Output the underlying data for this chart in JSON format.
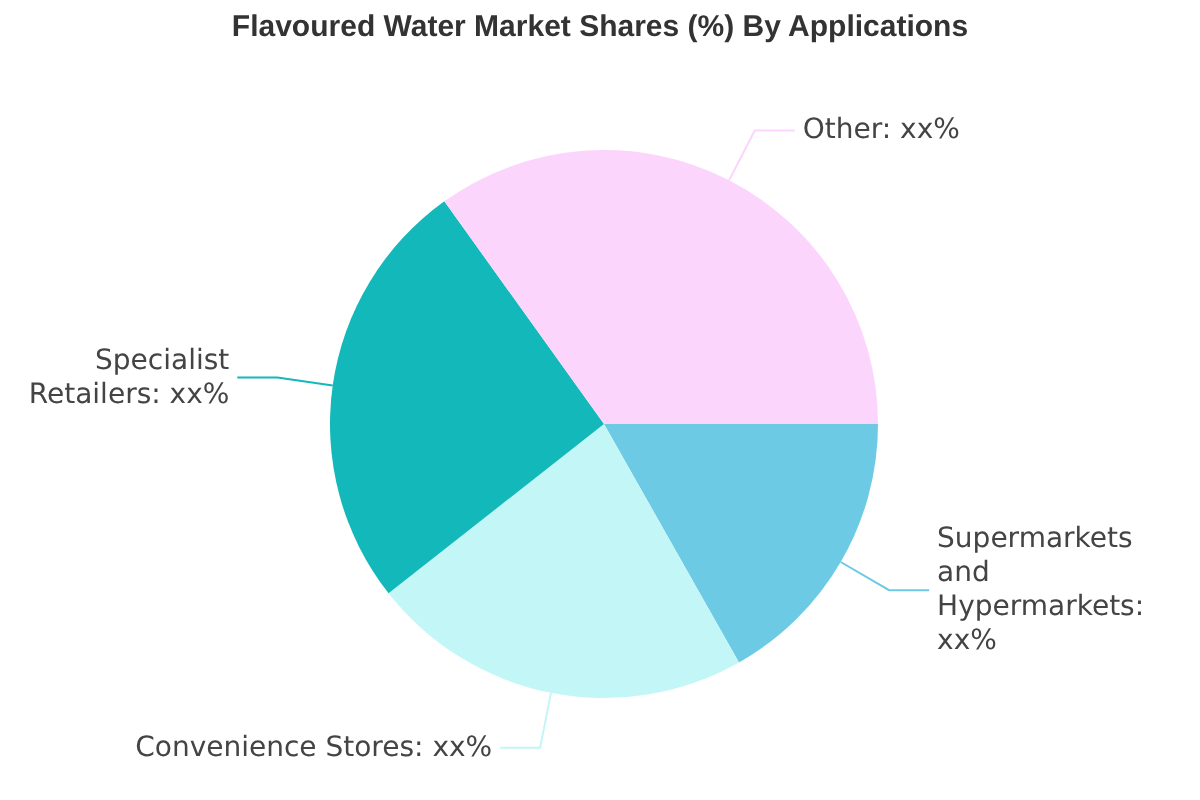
{
  "chart_data": {
    "type": "pie",
    "title": "Flavoured Water Market Shares (%) By Applications",
    "categories": [
      "Supermarkets and Hypermarkets: xx%",
      "Convenience Stores: xx%",
      "Specialist Retailers: xx%",
      "Other: xx%"
    ],
    "values": [
      16.8,
      22.6,
      25.7,
      34.9
    ],
    "colors": [
      "#6dcae5",
      "#c3f6f7",
      "#12b8ba",
      "#fbd5fb"
    ]
  }
}
